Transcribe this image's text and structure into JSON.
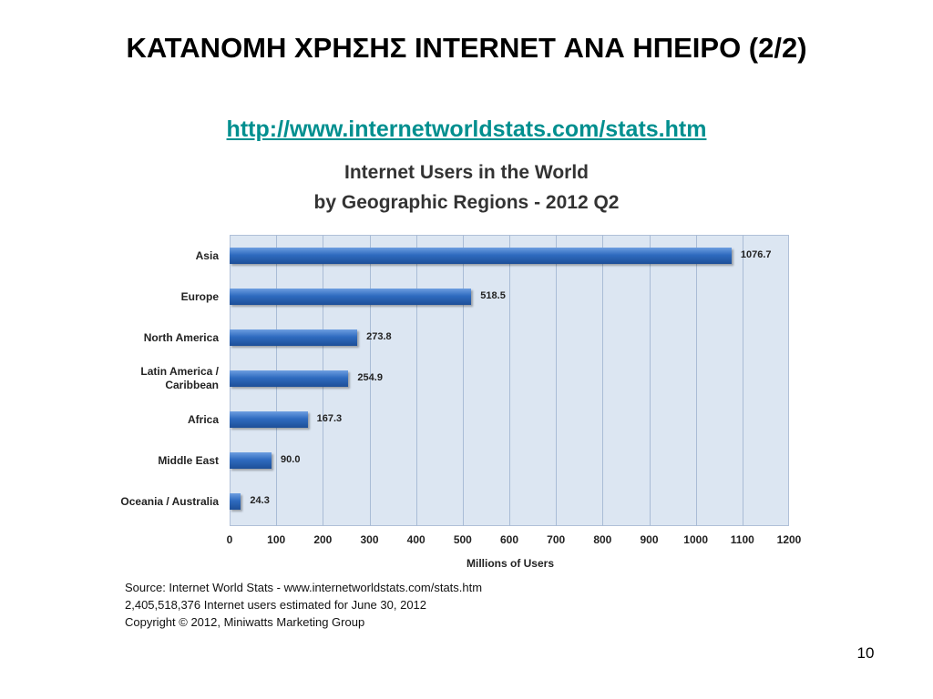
{
  "slide": {
    "title": "ΚΑΤΑΝΟΜΗ ΧΡΗΣΗΣ INTERNET ΑΝΑ ΗΠΕΙΡΟ (2/2)",
    "link": "http://www.internetworldstats.com/stats.htm",
    "page_number": "10"
  },
  "chart_data": {
    "type": "bar",
    "orientation": "horizontal",
    "title": "Internet Users in the World",
    "subtitle": "by Geographic Regions - 2012 Q2",
    "x_label": "Millions of Users",
    "categories": [
      "Asia",
      "Europe",
      "North America",
      "Latin America / Caribbean",
      "Africa",
      "Middle East",
      "Oceania / Australia"
    ],
    "values": [
      1076.7,
      518.5,
      273.8,
      254.9,
      167.3,
      90.0,
      24.3
    ],
    "value_labels": [
      "1076.7",
      "518.5",
      "273.8",
      "254.9",
      "167.3",
      "90.0",
      "24.3"
    ],
    "color": "#2f6bbf",
    "xlim": [
      0,
      1200
    ],
    "xticks": [
      0,
      100,
      200,
      300,
      400,
      500,
      600,
      700,
      800,
      900,
      1000,
      1100,
      1200
    ],
    "grid": true,
    "notes": [
      "Source: Internet World Stats - www.internetworldstats.com/stats.htm",
      "2,405,518,376 Internet users estimated for June 30, 2012",
      "Copyright © 2012, Miniwatts Marketing Group"
    ]
  }
}
